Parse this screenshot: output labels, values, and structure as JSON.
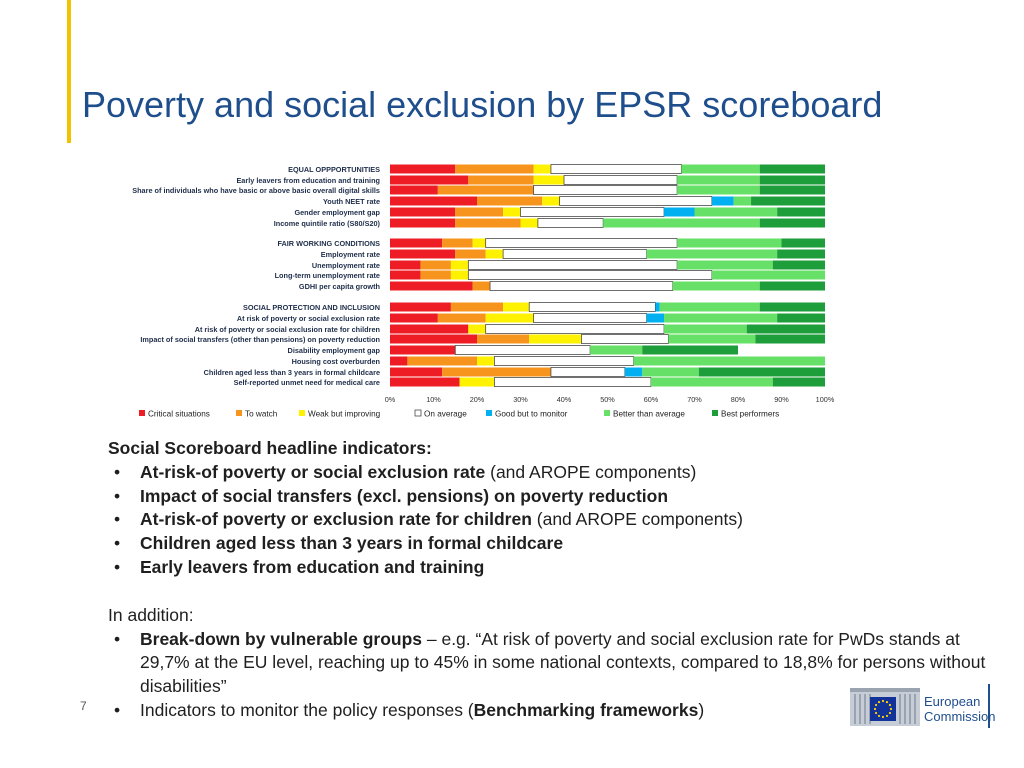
{
  "slide": {
    "title": "Poverty and social exclusion by EPSR scoreboard",
    "page_number": "7"
  },
  "colors": {
    "title": "#1f4e8c",
    "accent": "#f2c200",
    "critical": "#ee1c25",
    "to_watch": "#f7941d",
    "weak_improving": "#fff200",
    "on_average": "#ffffff",
    "good_monitor": "#00b0f0",
    "better_than_average": "#66e066",
    "best_performers": "#1e9e3a"
  },
  "chart_data": {
    "type": "bar",
    "orientation": "horizontal",
    "stacked": true,
    "categories": [
      "EQUAL OPPPORTUNITIES",
      "Early leavers from education and training",
      "Share of individuals who have basic or above basic overall digital skills",
      "Youth NEET rate",
      "Gender employment gap",
      "Income quintile ratio (S80/S20)",
      "FAIR WORKING CONDITIONS",
      "Employment rate",
      "Unemployment rate",
      "Long-term unemployment rate",
      "GDHI per capita growth",
      "SOCIAL PROTECTION AND INCLUSION",
      "At risk of poverty or social exclusion rate",
      "At risk of poverty or social exclusion rate for children",
      "Impact of social transfers (other than pensions) on poverty reduction",
      "Disability employment gap",
      "Housing cost overburden",
      "Children aged less than 3 years in formal childcare",
      "Self-reported unmet need for medical care"
    ],
    "group_headers": [
      "EQUAL OPPPORTUNITIES",
      "FAIR WORKING CONDITIONS",
      "SOCIAL PROTECTION AND INCLUSION"
    ],
    "series": [
      {
        "name": "Critical situations",
        "values": [
          15,
          18,
          11,
          20,
          15,
          15,
          12,
          15,
          7,
          7,
          19,
          14,
          11,
          18,
          20,
          15,
          4,
          12,
          16
        ]
      },
      {
        "name": "To watch",
        "values": [
          18,
          15,
          22,
          15,
          11,
          15,
          7,
          7,
          7,
          7,
          4,
          12,
          11,
          0,
          12,
          0,
          16,
          25,
          0
        ]
      },
      {
        "name": "Weak but improving",
        "values": [
          4,
          7,
          0,
          4,
          4,
          4,
          3,
          4,
          4,
          4,
          0,
          6,
          11,
          4,
          12,
          0,
          4,
          0,
          8
        ]
      },
      {
        "name": "On average",
        "values": [
          30,
          26,
          33,
          35,
          33,
          15,
          44,
          33,
          48,
          56,
          42,
          29,
          26,
          41,
          20,
          31,
          32,
          17,
          36
        ]
      },
      {
        "name": "Good but to monitor",
        "values": [
          0,
          0,
          0,
          5,
          7,
          0,
          0,
          0,
          0,
          0,
          0,
          1,
          4,
          0,
          0,
          0,
          0,
          4,
          0
        ]
      },
      {
        "name": "Better than average",
        "values": [
          18,
          19,
          19,
          4,
          19,
          36,
          24,
          30,
          22,
          26,
          20,
          23,
          26,
          19,
          20,
          12,
          44,
          13,
          28
        ]
      },
      {
        "name": "Best performers",
        "values": [
          15,
          15,
          15,
          17,
          11,
          15,
          10,
          11,
          12,
          0,
          15,
          15,
          11,
          18,
          16,
          22,
          0,
          29,
          12
        ]
      }
    ],
    "xlim": [
      0,
      100
    ],
    "x_ticks": [
      "0%",
      "10%",
      "20%",
      "30%",
      "40%",
      "50%",
      "60%",
      "70%",
      "80%",
      "90%",
      "100%"
    ],
    "legend_position": "bottom"
  },
  "content": {
    "heading": "Social Scoreboard headline indicators:",
    "bullet_symbol": "•",
    "bullets": [
      {
        "bold": "At-risk-of poverty or social exclusion rate",
        "rest": " (and AROPE components)"
      },
      {
        "bold": "Impact of social transfers (excl. pensions) on poverty reduction",
        "rest": ""
      },
      {
        "bold": "At-risk-of poverty or exclusion rate for children",
        "rest": " (and AROPE components)"
      },
      {
        "bold": "Children aged less than 3 years in formal childcare",
        "rest": ""
      },
      {
        "bold": "Early leavers from education and training",
        "rest": ""
      }
    ],
    "in_addition": "In addition:",
    "extra_bullet_1": {
      "bold": "Break-down by vulnerable groups",
      "rest": " – e.g. “At risk of poverty and social exclusion rate for PwDs stands at 29,7% at the EU level, reaching up to 45% in some national contexts, compared to 18,8% for persons without disabilities”"
    },
    "extra_bullet_2": {
      "pre": "Indicators to monitor the policy responses (",
      "bold": "Benchmarking frameworks",
      "post": ")"
    }
  },
  "logo": {
    "line1": "European",
    "line2": "Commission"
  }
}
